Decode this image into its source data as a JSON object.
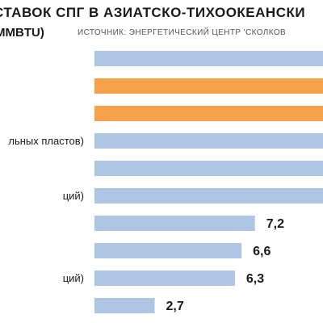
{
  "chart_data": {
    "type": "bar",
    "orientation": "horizontal",
    "title": "СТАВОК СПГ В АЗИАТСКО-ТИХООКЕАНСКИ",
    "unit_label": "MMBTU)",
    "source": "ИСТОЧНИК: ЭНЕРГЕТИЧЕСКИЙ ЦЕНТР 'СКОЛКОВ",
    "categories": [
      "",
      "",
      "",
      "льных пластов)",
      "",
      "ций)",
      "",
      "",
      "ций)",
      ""
    ],
    "values": [
      null,
      null,
      null,
      null,
      null,
      null,
      7.2,
      6.6,
      6.3,
      2.7
    ],
    "value_labels": [
      "",
      "",
      "",
      "",
      "",
      "",
      "7,2",
      "6,6",
      "6,3",
      "2,7"
    ],
    "highlighted": [
      false,
      true,
      true,
      false,
      false,
      false,
      false,
      false,
      false,
      false
    ],
    "colors": {
      "bar": "#aec6e3",
      "highlight": "#f5a04a"
    }
  }
}
